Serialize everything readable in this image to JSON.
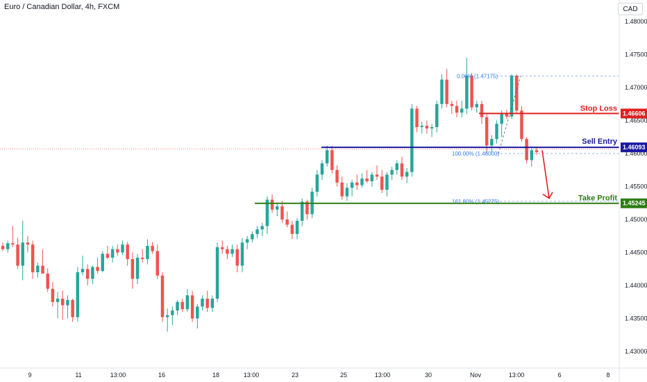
{
  "header": {
    "title": "Euro / Canadian Dollar, 4h, FXCM",
    "currency_button": "CAD"
  },
  "colors": {
    "up": "#26a69a",
    "down": "#ef5350",
    "stop": "#e02020",
    "entry": "#1a1aa0",
    "tp": "#2e7d12",
    "fib": "#3179f5"
  },
  "chart_data": {
    "type": "candlestick",
    "title": "Euro / Canadian Dollar, 4h, FXCM",
    "y_axis": {
      "ticks": [
        1.48,
        1.475,
        1.47,
        1.465,
        1.46,
        1.455,
        1.45,
        1.445,
        1.44,
        1.435,
        1.43
      ],
      "tick_labels": [
        "1.48000",
        "1.47500",
        "1.47000",
        "1.46500",
        "1.46000",
        "1.45500",
        "1.45000",
        "1.44500",
        "1.44000",
        "1.43500",
        "1.43000"
      ],
      "ylim": [
        1.4265,
        1.4835
      ]
    },
    "x_axis": {
      "labels": [
        "9",
        "11",
        "13:00",
        "16",
        "18",
        "13:00",
        "23",
        "25",
        "13:00",
        "30",
        "Nov",
        "13:00",
        "6",
        "8"
      ]
    },
    "candles": [
      [
        1.446,
        1.4465,
        1.4452,
        1.4455
      ],
      [
        1.4455,
        1.4468,
        1.445,
        1.4464
      ],
      [
        1.4464,
        1.449,
        1.4458,
        1.4462
      ],
      [
        1.4462,
        1.4472,
        1.4425,
        1.443
      ],
      [
        1.443,
        1.4498,
        1.4408,
        1.4465
      ],
      [
        1.4465,
        1.4475,
        1.445,
        1.4462
      ],
      [
        1.4462,
        1.4468,
        1.441,
        1.442
      ],
      [
        1.442,
        1.4435,
        1.4412,
        1.443
      ],
      [
        1.443,
        1.4455,
        1.442,
        1.4418
      ],
      [
        1.4418,
        1.4426,
        1.439,
        1.4395
      ],
      [
        1.4395,
        1.4405,
        1.4368,
        1.4375
      ],
      [
        1.4375,
        1.439,
        1.435,
        1.438
      ],
      [
        1.438,
        1.4392,
        1.4348,
        1.437
      ],
      [
        1.437,
        1.4385,
        1.435,
        1.4378
      ],
      [
        1.4378,
        1.438,
        1.4345,
        1.4352
      ],
      [
        1.4352,
        1.4428,
        1.4345,
        1.442
      ],
      [
        1.442,
        1.4445,
        1.4415,
        1.4425
      ],
      [
        1.4425,
        1.4432,
        1.44,
        1.441
      ],
      [
        1.441,
        1.443,
        1.4402,
        1.4428
      ],
      [
        1.4428,
        1.4442,
        1.4418,
        1.4422
      ],
      [
        1.4422,
        1.4452,
        1.442,
        1.4448
      ],
      [
        1.4448,
        1.446,
        1.444,
        1.4442
      ],
      [
        1.4442,
        1.446,
        1.4435,
        1.4455
      ],
      [
        1.4455,
        1.4462,
        1.4445,
        1.445
      ],
      [
        1.445,
        1.4468,
        1.4446,
        1.4462
      ],
      [
        1.4462,
        1.4466,
        1.443,
        1.444
      ],
      [
        1.444,
        1.445,
        1.4395,
        1.441
      ],
      [
        1.441,
        1.4448,
        1.4402,
        1.4442
      ],
      [
        1.4442,
        1.4455,
        1.4435,
        1.444
      ],
      [
        1.444,
        1.447,
        1.4432,
        1.446
      ],
      [
        1.446,
        1.4466,
        1.4448,
        1.4452
      ],
      [
        1.4452,
        1.4462,
        1.441,
        1.4415
      ],
      [
        1.4415,
        1.442,
        1.4345,
        1.4352
      ],
      [
        1.4352,
        1.4365,
        1.433,
        1.4355
      ],
      [
        1.4355,
        1.4368,
        1.434,
        1.4362
      ],
      [
        1.4362,
        1.4378,
        1.4355,
        1.4375
      ],
      [
        1.4375,
        1.438,
        1.436,
        1.4364
      ],
      [
        1.4364,
        1.4395,
        1.436,
        1.4385
      ],
      [
        1.4385,
        1.4392,
        1.4345,
        1.435
      ],
      [
        1.435,
        1.4372,
        1.4335,
        1.4368
      ],
      [
        1.4368,
        1.4385,
        1.4362,
        1.438
      ],
      [
        1.438,
        1.4392,
        1.436,
        1.4366
      ],
      [
        1.4366,
        1.4385,
        1.436,
        1.438
      ],
      [
        1.438,
        1.4465,
        1.4375,
        1.4458
      ],
      [
        1.4458,
        1.4468,
        1.4448,
        1.4455
      ],
      [
        1.4455,
        1.446,
        1.444,
        1.4448
      ],
      [
        1.4448,
        1.4462,
        1.4443,
        1.4455
      ],
      [
        1.4455,
        1.4462,
        1.442,
        1.443
      ],
      [
        1.443,
        1.4472,
        1.442,
        1.4465
      ],
      [
        1.4465,
        1.4475,
        1.4455,
        1.447
      ],
      [
        1.447,
        1.4482,
        1.4465,
        1.4478
      ],
      [
        1.4478,
        1.449,
        1.4472,
        1.4485
      ],
      [
        1.4485,
        1.4495,
        1.4475,
        1.449
      ],
      [
        1.449,
        1.4535,
        1.4478,
        1.453
      ],
      [
        1.453,
        1.4538,
        1.451,
        1.4515
      ],
      [
        1.4515,
        1.4525,
        1.4505,
        1.452
      ],
      [
        1.452,
        1.4528,
        1.4495,
        1.45
      ],
      [
        1.45,
        1.4512,
        1.4488,
        1.4492
      ],
      [
        1.4492,
        1.4498,
        1.447,
        1.4478
      ],
      [
        1.4478,
        1.4502,
        1.447,
        1.4498
      ],
      [
        1.4498,
        1.4532,
        1.449,
        1.4527
      ],
      [
        1.4527,
        1.453,
        1.45,
        1.4508
      ],
      [
        1.4508,
        1.4548,
        1.4502,
        1.4542
      ],
      [
        1.4542,
        1.4575,
        1.4535,
        1.4568
      ],
      [
        1.4568,
        1.459,
        1.456,
        1.4585
      ],
      [
        1.4585,
        1.4612,
        1.458,
        1.4605
      ],
      [
        1.4605,
        1.4612,
        1.457,
        1.4575
      ],
      [
        1.4575,
        1.4582,
        1.455,
        1.4556
      ],
      [
        1.4556,
        1.4565,
        1.453,
        1.4535
      ],
      [
        1.4535,
        1.4555,
        1.4528,
        1.4548
      ],
      [
        1.4548,
        1.456,
        1.4535,
        1.4556
      ],
      [
        1.4556,
        1.4568,
        1.4545,
        1.4552
      ],
      [
        1.4552,
        1.457,
        1.4548,
        1.4562
      ],
      [
        1.4562,
        1.4575,
        1.4555,
        1.4558
      ],
      [
        1.4558,
        1.4572,
        1.455,
        1.4568
      ],
      [
        1.4568,
        1.4582,
        1.456,
        1.4565
      ],
      [
        1.4565,
        1.4575,
        1.454,
        1.4545
      ],
      [
        1.4545,
        1.4572,
        1.4535,
        1.4568
      ],
      [
        1.4568,
        1.458,
        1.456,
        1.4575
      ],
      [
        1.4575,
        1.459,
        1.4568,
        1.4585
      ],
      [
        1.4585,
        1.4595,
        1.456,
        1.4565
      ],
      [
        1.4565,
        1.4578,
        1.4555,
        1.4572
      ],
      [
        1.4572,
        1.4675,
        1.4565,
        1.4668
      ],
      [
        1.4668,
        1.4672,
        1.4632,
        1.464
      ],
      [
        1.464,
        1.4648,
        1.463,
        1.4642
      ],
      [
        1.4642,
        1.465,
        1.463,
        1.4638
      ],
      [
        1.4638,
        1.4645,
        1.4625,
        1.464
      ],
      [
        1.464,
        1.468,
        1.4632,
        1.4675
      ],
      [
        1.4675,
        1.472,
        1.4668,
        1.4712
      ],
      [
        1.4712,
        1.4728,
        1.467,
        1.4675
      ],
      [
        1.4675,
        1.468,
        1.466,
        1.4672
      ],
      [
        1.4672,
        1.468,
        1.4655,
        1.4662
      ],
      [
        1.4662,
        1.468,
        1.4655,
        1.4668
      ],
      [
        1.4668,
        1.4745,
        1.466,
        1.4718
      ],
      [
        1.4718,
        1.4722,
        1.4665,
        1.467
      ],
      [
        1.467,
        1.468,
        1.4662,
        1.4675
      ],
      [
        1.4675,
        1.468,
        1.4645,
        1.4655
      ],
      [
        1.4655,
        1.466,
        1.46,
        1.4612
      ],
      [
        1.4612,
        1.4628,
        1.46,
        1.4622
      ],
      [
        1.4622,
        1.465,
        1.4615,
        1.4645
      ],
      [
        1.4645,
        1.4665,
        1.4625,
        1.466
      ],
      [
        1.466,
        1.4666,
        1.4652,
        1.4656
      ],
      [
        1.4656,
        1.472,
        1.4652,
        1.4718
      ],
      [
        1.4718,
        1.472,
        1.466,
        1.4665
      ],
      [
        1.4665,
        1.4672,
        1.4618,
        1.4622
      ],
      [
        1.4622,
        1.4625,
        1.4585,
        1.459
      ],
      [
        1.459,
        1.461,
        1.458,
        1.4605
      ],
      [
        1.4605,
        1.461,
        1.4598,
        1.4602
      ]
    ],
    "levels": [
      {
        "name": "Stop Loss",
        "value": 1.46606,
        "label": "1.46606"
      },
      {
        "name": "Sell Entry",
        "value": 1.46093,
        "label": "1.46093"
      },
      {
        "name": "Take Profit",
        "value": 1.45245,
        "label": "1.45245"
      }
    ],
    "fib_levels": [
      {
        "text": "0.00% (1.47175)",
        "value": 1.47175
      },
      {
        "text": "100.00% (1.46000)",
        "value": 1.46
      },
      {
        "text": "161.80% (1.45275)",
        "value": 1.45275
      }
    ],
    "current_price": 1.4607
  }
}
